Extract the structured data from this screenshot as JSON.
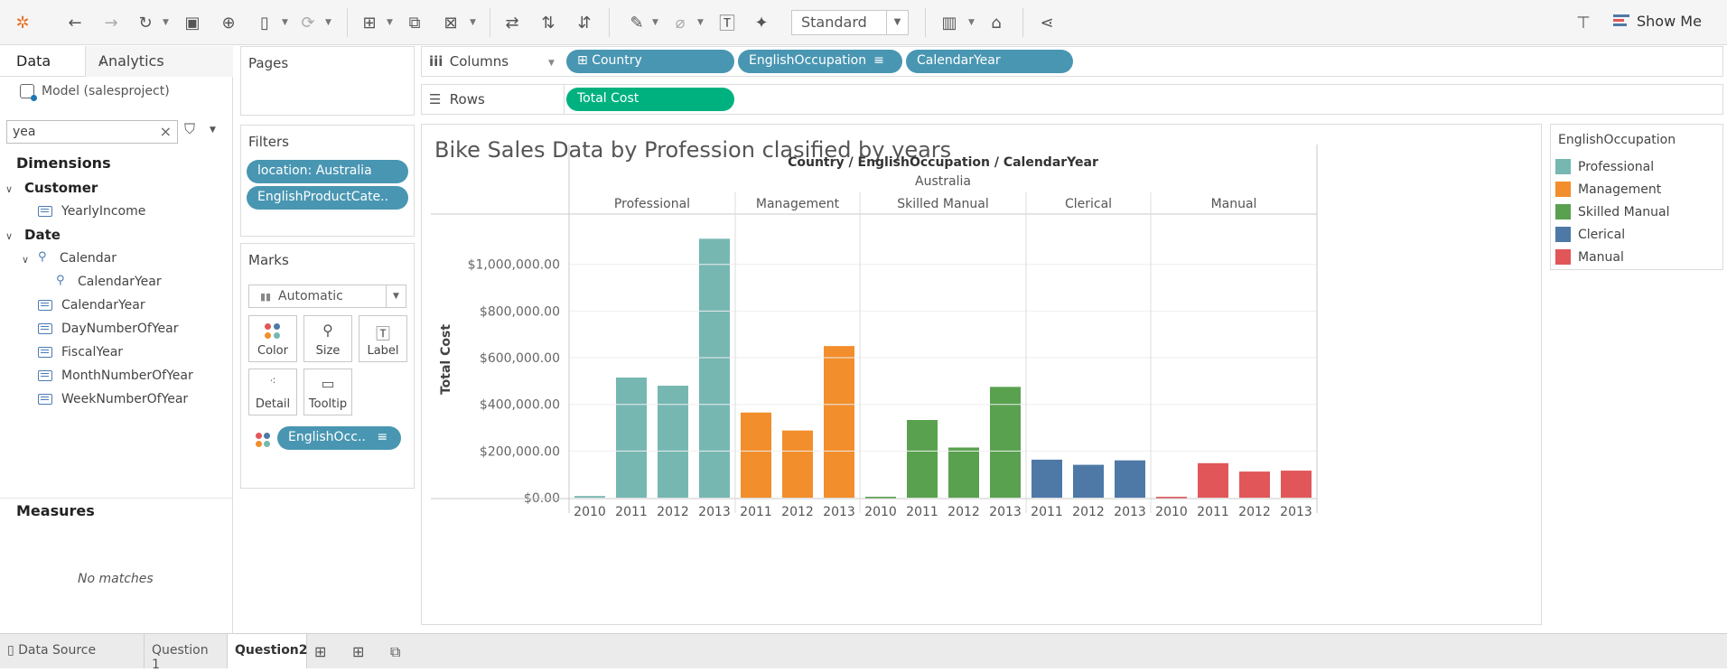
{
  "toolbar": {
    "view_size": "Standard",
    "show_me": "Show Me"
  },
  "left_panel": {
    "tab_data": "Data",
    "tab_analytics": "Analytics",
    "model": "Model (salesproject)",
    "search_value": "yea",
    "dimensions_header": "Dimensions",
    "groups": [
      {
        "name": "Customer",
        "fields": [
          "YearlyIncome"
        ]
      },
      {
        "name": "Date",
        "hierarchy": "Calendar",
        "hierarchy_fields": [
          "CalendarYear"
        ],
        "fields": [
          "CalendarYear",
          "DayNumberOfYear",
          "FiscalYear",
          "MonthNumberOfYear",
          "WeekNumberOfYear"
        ]
      }
    ],
    "measures_header": "Measures",
    "measures_empty": "No matches"
  },
  "shelves": {
    "pages": "Pages",
    "filters": "Filters",
    "filter_pills": [
      "location: Australia",
      "EnglishProductCate.."
    ],
    "marks": "Marks",
    "mark_type": "Automatic",
    "mark_buttons": [
      "Color",
      "Size",
      "Label",
      "Detail",
      "Tooltip"
    ],
    "color_pill": "EnglishOcc..",
    "columns_label": "Columns",
    "columns_pills": [
      "Country",
      "EnglishOccupation",
      "CalendarYear"
    ],
    "rows_label": "Rows",
    "rows_pills": [
      "Total Cost"
    ]
  },
  "chart_data": {
    "type": "bar",
    "title": "Bike Sales Data by Profession clasified by years",
    "header_title": "Country / EnglishOccupation / CalendarYear",
    "country": "Australia",
    "ylabel": "Total Cost",
    "ylim": [
      0,
      1150000
    ],
    "yticks": [
      0,
      200000,
      400000,
      600000,
      800000,
      1000000
    ],
    "ytick_labels": [
      "$0.00",
      "$200,000.00",
      "$400,000.00",
      "$600,000.00",
      "$800,000.00",
      "$1,000,000.00"
    ],
    "groups": [
      {
        "name": "Professional",
        "color": "#76b7b2",
        "years": [
          "2010",
          "2011",
          "2012",
          "2013"
        ],
        "values": [
          7000,
          515000,
          480000,
          1110000
        ]
      },
      {
        "name": "Management",
        "color": "#f28e2b",
        "years": [
          "2011",
          "2012",
          "2013"
        ],
        "values": [
          365000,
          288000,
          650000
        ]
      },
      {
        "name": "Skilled Manual",
        "color": "#59a14f",
        "years": [
          "2010",
          "2011",
          "2012",
          "2013"
        ],
        "values": [
          4000,
          333000,
          215000,
          475000
        ]
      },
      {
        "name": "Clerical",
        "color": "#4e79a7",
        "years": [
          "2011",
          "2012",
          "2013"
        ],
        "values": [
          163000,
          141000,
          160000
        ]
      },
      {
        "name": "Manual",
        "color": "#e15759",
        "years": [
          "2010",
          "2011",
          "2012",
          "2013"
        ],
        "values": [
          4000,
          148000,
          112000,
          116000
        ]
      }
    ]
  },
  "legend": {
    "title": "EnglishOccupation",
    "items": [
      {
        "label": "Professional",
        "color": "#76b7b2"
      },
      {
        "label": "Management",
        "color": "#f28e2b"
      },
      {
        "label": "Skilled Manual",
        "color": "#59a14f"
      },
      {
        "label": "Clerical",
        "color": "#4e79a7"
      },
      {
        "label": "Manual",
        "color": "#e15759"
      }
    ]
  },
  "bottom_tabs": [
    "Data Source",
    "Question 1",
    "Question2"
  ]
}
